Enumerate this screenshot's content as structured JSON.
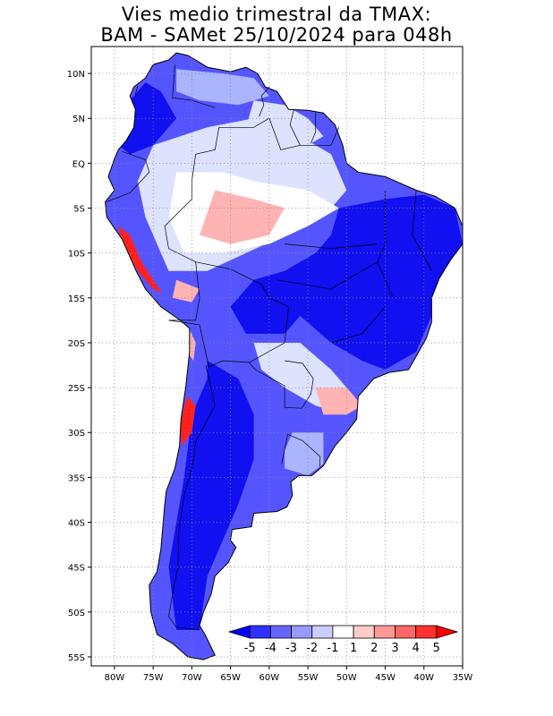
{
  "title": {
    "line1": "Vies medio trimestral da TMAX:",
    "line2": "BAM - SAMet 25/10/2024  para 048h"
  },
  "map": {
    "lon_range": [
      -83,
      -35
    ],
    "lat_range": [
      -56,
      13
    ],
    "lon_ticks": [
      "80W",
      "75W",
      "70W",
      "65W",
      "60W",
      "55W",
      "50W",
      "45W",
      "40W",
      "35W"
    ],
    "lon_values": [
      -80,
      -75,
      -70,
      -65,
      -60,
      -55,
      -50,
      -45,
      -40,
      -35
    ],
    "lat_ticks": [
      "10N",
      "5N",
      "EQ",
      "5S",
      "10S",
      "15S",
      "20S",
      "25S",
      "30S",
      "35S",
      "40S",
      "45S",
      "50S",
      "55S"
    ],
    "lat_values": [
      10,
      5,
      0,
      -5,
      -10,
      -15,
      -20,
      -25,
      -30,
      -35,
      -40,
      -45,
      -50,
      -55
    ],
    "grid": "dotted",
    "continent": "South America",
    "field": "TMAX seasonal mean bias (model minus observation)"
  },
  "colorbar": {
    "labels": [
      "-5",
      "-4",
      "-3",
      "-2",
      "-1",
      "1",
      "2",
      "3",
      "4",
      "5"
    ],
    "colors": [
      "#0000ff",
      "#3030ff",
      "#6666ff",
      "#9999ff",
      "#ccccff",
      "#ffffff",
      "#ffcccc",
      "#ff9999",
      "#ff6666",
      "#ff3030",
      "#ff0000"
    ]
  },
  "colors": {
    "strong_blue": "#1010f0",
    "medium_blue": "#5555ff",
    "light_blue": "#aab4ff",
    "pale_blue": "#dde2ff",
    "light_red": "#ffb3b3",
    "red": "#ff2020",
    "border": "#000000"
  }
}
